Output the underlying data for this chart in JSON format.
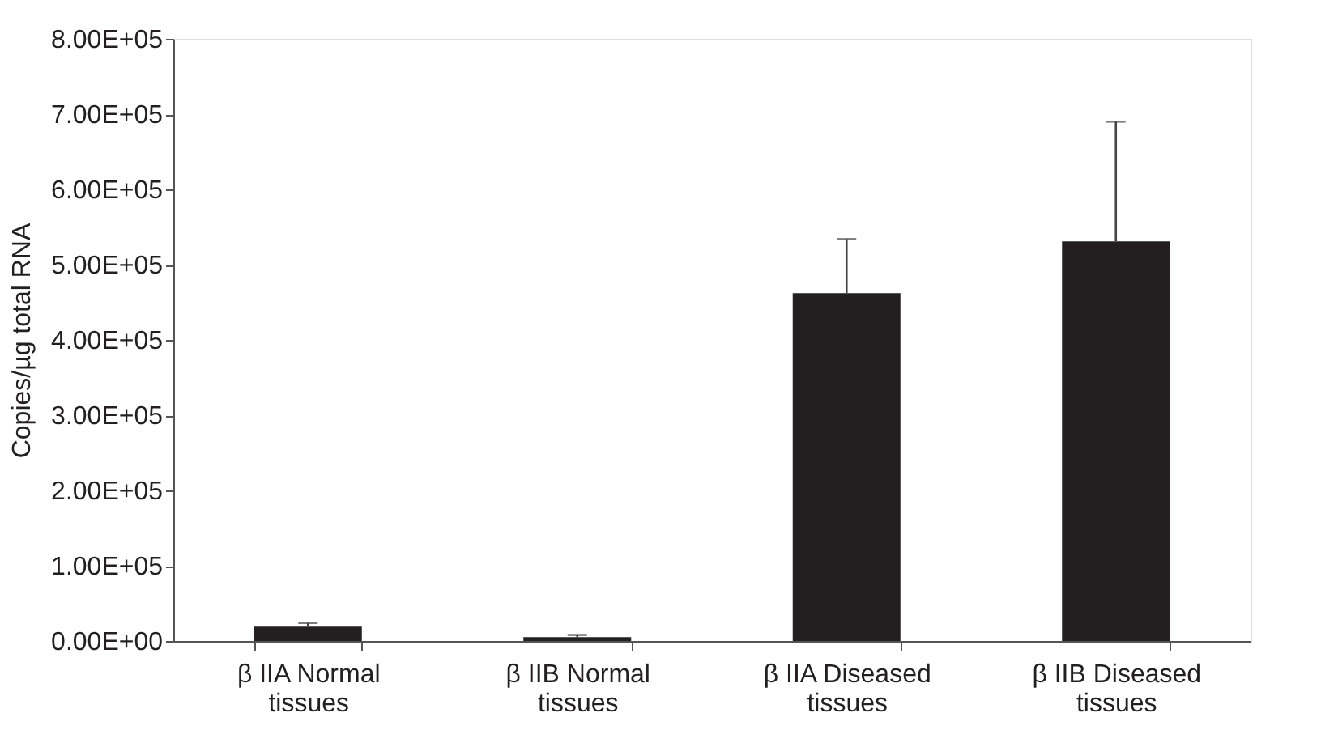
{
  "chart_data": {
    "type": "bar",
    "ylabel": "Copies/µg total RNA",
    "categories": [
      "β IIA Normal tissues",
      "β IIB Normal tissues",
      "β IIA Diseased tissues",
      "β IIB Diseased tissues"
    ],
    "values": [
      19000,
      5000,
      462000,
      531000
    ],
    "color": "#231f20",
    "errors": [
      [
        19000,
        24000
      ],
      [
        5000,
        8000
      ],
      [
        462000,
        534000
      ],
      [
        531000,
        690000
      ]
    ],
    "ylim": [
      0,
      800000
    ],
    "yticks": [
      {
        "value": 0,
        "label": "0.00E+00"
      },
      {
        "value": 100000,
        "label": "1.00E+05"
      },
      {
        "value": 200000,
        "label": "2.00E+05"
      },
      {
        "value": 300000,
        "label": "3.00E+05"
      },
      {
        "value": 400000,
        "label": "4.00E+05"
      },
      {
        "value": 500000,
        "label": "5.00E+05"
      },
      {
        "value": 600000,
        "label": "6.00E+05"
      },
      {
        "value": 700000,
        "label": "7.00E+05"
      },
      {
        "value": 800000,
        "label": "8.00E+05"
      }
    ],
    "grid": false
  }
}
